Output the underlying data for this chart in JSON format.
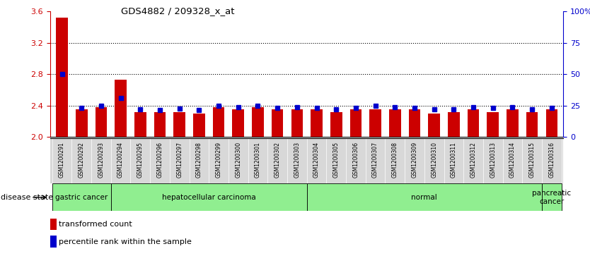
{
  "title": "GDS4882 / 209328_x_at",
  "samples": [
    "GSM1200291",
    "GSM1200292",
    "GSM1200293",
    "GSM1200294",
    "GSM1200295",
    "GSM1200296",
    "GSM1200297",
    "GSM1200298",
    "GSM1200299",
    "GSM1200300",
    "GSM1200301",
    "GSM1200302",
    "GSM1200303",
    "GSM1200304",
    "GSM1200305",
    "GSM1200306",
    "GSM1200307",
    "GSM1200308",
    "GSM1200309",
    "GSM1200310",
    "GSM1200311",
    "GSM1200312",
    "GSM1200313",
    "GSM1200314",
    "GSM1200315",
    "GSM1200316"
  ],
  "red_values": [
    3.52,
    2.35,
    2.38,
    2.73,
    2.32,
    2.32,
    2.32,
    2.3,
    2.38,
    2.35,
    2.38,
    2.35,
    2.35,
    2.35,
    2.32,
    2.35,
    2.35,
    2.35,
    2.35,
    2.3,
    2.32,
    2.35,
    2.32,
    2.35,
    2.32,
    2.35
  ],
  "blue_values": [
    2.8,
    2.37,
    2.4,
    2.5,
    2.35,
    2.34,
    2.36,
    2.34,
    2.4,
    2.38,
    2.4,
    2.37,
    2.38,
    2.37,
    2.35,
    2.37,
    2.4,
    2.38,
    2.37,
    2.35,
    2.35,
    2.38,
    2.37,
    2.38,
    2.35,
    2.37
  ],
  "ymin": 2.0,
  "ymax": 3.6,
  "yticks_left": [
    2.0,
    2.4,
    2.8,
    3.2,
    3.6
  ],
  "yticks_right_pct": [
    0,
    25,
    50,
    75,
    100
  ],
  "yticks_right_labels": [
    "0",
    "25",
    "50",
    "75",
    "100%"
  ],
  "bar_color": "#CC0000",
  "blue_color": "#0000CC",
  "left_axis_color": "#CC0000",
  "right_axis_color": "#0000CC",
  "legend_red_label": "transformed count",
  "legend_blue_label": "percentile rank within the sample",
  "groups": [
    {
      "label": "gastric cancer",
      "start": 0,
      "end": 3
    },
    {
      "label": "hepatocellular carcinoma",
      "start": 3,
      "end": 13
    },
    {
      "label": "normal",
      "start": 13,
      "end": 25
    },
    {
      "label": "pancreatic\ncancer",
      "start": 25,
      "end": 26
    }
  ],
  "group_color": "#90EE90",
  "disease_state_label": "disease state",
  "xtick_bg_color": "#D8D8D8",
  "dotted_line_color": "#000000"
}
